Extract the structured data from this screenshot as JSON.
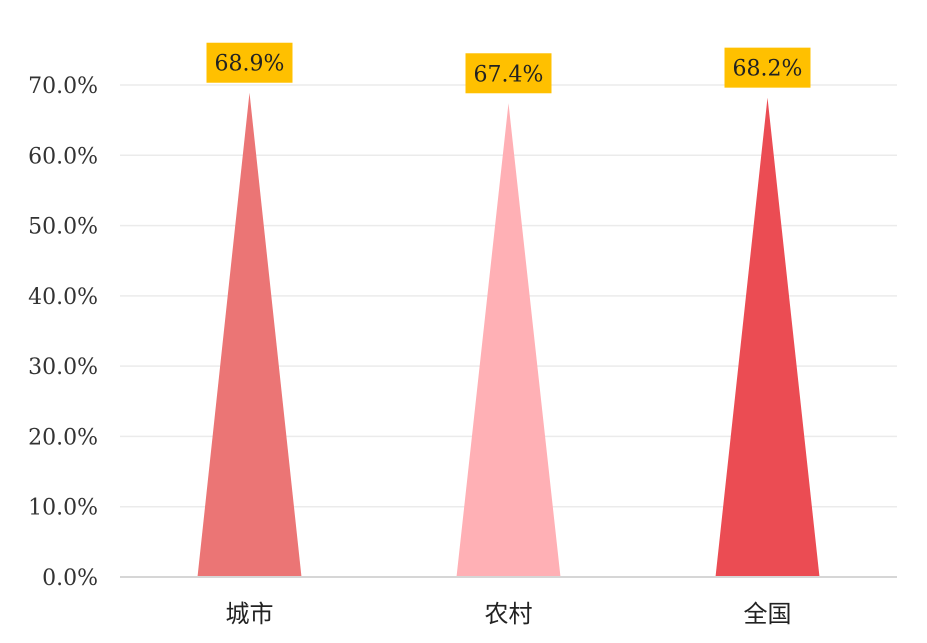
{
  "chart_data": {
    "type": "bar",
    "bar_shape": "triangle",
    "categories": [
      "城市",
      "农村",
      "全国"
    ],
    "values": [
      68.9,
      67.4,
      68.2
    ],
    "data_labels": [
      "68.9%",
      "67.4%",
      "68.2%"
    ],
    "ylim": [
      0,
      70
    ],
    "yticks": [
      0,
      10,
      20,
      30,
      40,
      50,
      60,
      70
    ],
    "ytick_labels": [
      "0.0%",
      "10.0%",
      "20.0%",
      "30.0%",
      "40.0%",
      "50.0%",
      "60.0%",
      "70.0%"
    ],
    "grid": true,
    "legend": false,
    "colors": {
      "bars": [
        "#EB7575",
        "#FFB0B5",
        "#EB4C53"
      ],
      "label_background": "#FFC000",
      "gridline": "#EBEBEB",
      "axis": "#D6D6D6"
    }
  }
}
